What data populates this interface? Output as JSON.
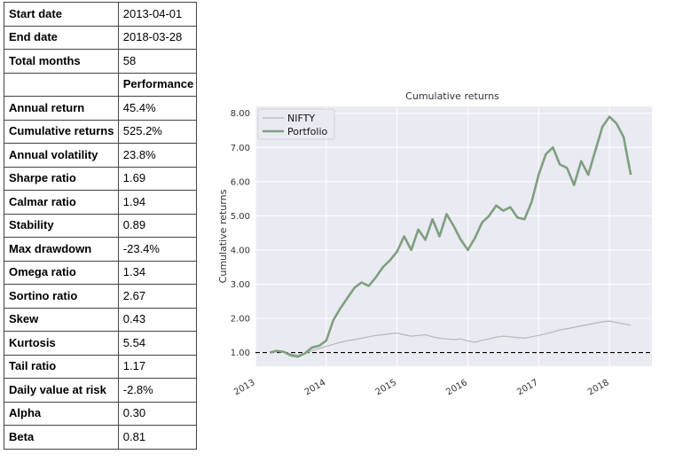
{
  "stats": {
    "rows": [
      {
        "label": "Start date",
        "value": "2013-04-01"
      },
      {
        "label": "End date",
        "value": "2018-03-28"
      },
      {
        "label": "Total months",
        "value": "58"
      },
      {
        "label": "",
        "value": "Performance"
      },
      {
        "label": "Annual return",
        "value": "45.4%"
      },
      {
        "label": "Cumulative returns",
        "value": "525.2%"
      },
      {
        "label": "Annual volatility",
        "value": "23.8%"
      },
      {
        "label": "Sharpe ratio",
        "value": "1.69"
      },
      {
        "label": "Calmar ratio",
        "value": "1.94"
      },
      {
        "label": "Stability",
        "value": "0.89"
      },
      {
        "label": "Max drawdown",
        "value": "-23.4%"
      },
      {
        "label": "Omega ratio",
        "value": "1.34"
      },
      {
        "label": "Sortino ratio",
        "value": "2.67"
      },
      {
        "label": "Skew",
        "value": "0.43"
      },
      {
        "label": "Kurtosis",
        "value": "5.54"
      },
      {
        "label": "Tail ratio",
        "value": "1.17"
      },
      {
        "label": "Daily value at risk",
        "value": "-2.8%"
      },
      {
        "label": "Alpha",
        "value": "0.30"
      },
      {
        "label": "Beta",
        "value": "0.81"
      }
    ]
  },
  "chart_data": {
    "type": "line",
    "title": "Cumulative returns",
    "xlabel": "",
    "ylabel": "Cumulative returns",
    "xlim": [
      2013.0,
      2018.6
    ],
    "ylim": [
      0.6,
      8.2
    ],
    "x_ticks": [
      {
        "value": 2013,
        "label": "2013"
      },
      {
        "value": 2014,
        "label": "2014"
      },
      {
        "value": 2015,
        "label": "2015"
      },
      {
        "value": 2016,
        "label": "2016"
      },
      {
        "value": 2017,
        "label": "2017"
      },
      {
        "value": 2018,
        "label": "2018"
      }
    ],
    "y_ticks": [
      {
        "value": 1,
        "label": "1.00"
      },
      {
        "value": 2,
        "label": "2.00"
      },
      {
        "value": 3,
        "label": "3.00"
      },
      {
        "value": 4,
        "label": "4.00"
      },
      {
        "value": 5,
        "label": "5.00"
      },
      {
        "value": 6,
        "label": "6.00"
      },
      {
        "value": 7,
        "label": "7.00"
      },
      {
        "value": 8,
        "label": "8.00"
      }
    ],
    "reference_line": {
      "y": 1.0,
      "style": "dashed",
      "color": "#000000"
    },
    "grid": true,
    "legend": "top-left",
    "colors": {
      "plot_background": "#eaeaf2",
      "grid": "#ffffff",
      "nifty": "#b8b8b8",
      "portfolio": "#7f9f7f"
    },
    "series": [
      {
        "name": "NIFTY",
        "x": [
          2013.2,
          2013.3,
          2013.4,
          2013.5,
          2013.6,
          2013.7,
          2013.8,
          2013.9,
          2014.0,
          2014.1,
          2014.2,
          2014.3,
          2014.4,
          2014.5,
          2014.6,
          2014.7,
          2014.8,
          2014.9,
          2015.0,
          2015.1,
          2015.2,
          2015.3,
          2015.4,
          2015.5,
          2015.6,
          2015.7,
          2015.8,
          2015.9,
          2016.0,
          2016.1,
          2016.2,
          2016.3,
          2016.4,
          2016.5,
          2016.6,
          2016.7,
          2016.8,
          2016.9,
          2017.0,
          2017.1,
          2017.2,
          2017.3,
          2017.4,
          2017.5,
          2017.6,
          2017.7,
          2017.8,
          2017.9,
          2018.0,
          2018.1,
          2018.2,
          2018.3
        ],
        "values": [
          1.0,
          1.04,
          1.02,
          0.96,
          0.92,
          0.98,
          1.06,
          1.12,
          1.18,
          1.24,
          1.3,
          1.35,
          1.38,
          1.42,
          1.46,
          1.5,
          1.52,
          1.55,
          1.57,
          1.52,
          1.48,
          1.5,
          1.52,
          1.46,
          1.42,
          1.4,
          1.38,
          1.4,
          1.34,
          1.3,
          1.36,
          1.4,
          1.45,
          1.48,
          1.46,
          1.44,
          1.42,
          1.46,
          1.5,
          1.55,
          1.6,
          1.66,
          1.7,
          1.74,
          1.78,
          1.82,
          1.86,
          1.9,
          1.92,
          1.88,
          1.84,
          1.8
        ]
      },
      {
        "name": "Portfolio",
        "x": [
          2013.2,
          2013.3,
          2013.4,
          2013.5,
          2013.6,
          2013.7,
          2013.8,
          2013.9,
          2014.0,
          2014.1,
          2014.2,
          2014.3,
          2014.4,
          2014.5,
          2014.6,
          2014.7,
          2014.8,
          2014.9,
          2015.0,
          2015.1,
          2015.2,
          2015.3,
          2015.4,
          2015.5,
          2015.6,
          2015.7,
          2015.8,
          2015.9,
          2016.0,
          2016.1,
          2016.2,
          2016.3,
          2016.4,
          2016.5,
          2016.6,
          2016.7,
          2016.8,
          2016.9,
          2017.0,
          2017.1,
          2017.2,
          2017.3,
          2017.4,
          2017.5,
          2017.6,
          2017.7,
          2017.8,
          2017.9,
          2018.0,
          2018.1,
          2018.2,
          2018.3
        ],
        "values": [
          1.0,
          1.05,
          1.02,
          0.92,
          0.88,
          0.98,
          1.15,
          1.2,
          1.35,
          1.95,
          2.3,
          2.6,
          2.9,
          3.05,
          2.95,
          3.2,
          3.5,
          3.7,
          3.95,
          4.4,
          4.0,
          4.6,
          4.3,
          4.9,
          4.4,
          5.05,
          4.7,
          4.3,
          4.0,
          4.35,
          4.8,
          5.0,
          5.3,
          5.15,
          5.25,
          4.95,
          4.9,
          5.4,
          6.2,
          6.8,
          7.0,
          6.5,
          6.4,
          5.9,
          6.6,
          6.2,
          6.9,
          7.6,
          7.9,
          7.7,
          7.3,
          6.2
        ]
      }
    ]
  }
}
